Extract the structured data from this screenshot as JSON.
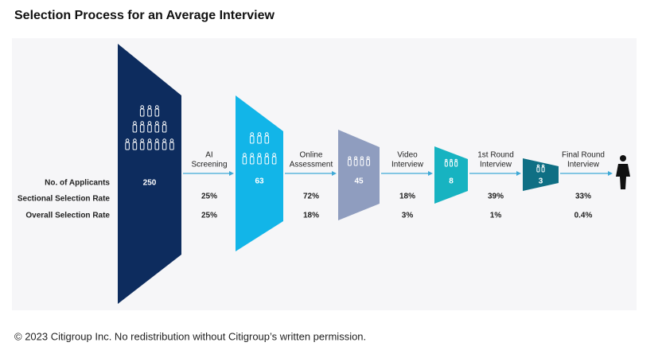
{
  "title": "Selection Process for an Average Interview",
  "row_labels": [
    "No. of Applicants",
    "Sectional Selection Rate",
    "Overall Selection Rate"
  ],
  "stages": [
    {
      "applicants": 250
    },
    {
      "applicants": 63
    },
    {
      "applicants": 45
    },
    {
      "applicants": 8
    },
    {
      "applicants": 3
    }
  ],
  "steps": [
    {
      "label": [
        "AI",
        "Screening"
      ],
      "sectional": "25%",
      "overall": "25%"
    },
    {
      "label": [
        "Online",
        "Assessment"
      ],
      "sectional": "72%",
      "overall": "18%"
    },
    {
      "label": [
        "Video",
        "Interview"
      ],
      "sectional": "18%",
      "overall": "3%"
    },
    {
      "label": [
        "1st Round",
        "Interview"
      ],
      "sectional": "39%",
      "overall": "1%"
    },
    {
      "label": [
        "Final Round",
        "Interview"
      ],
      "sectional": "33%",
      "overall": "0.4%"
    }
  ],
  "footer": "© 2023 Citigroup Inc. No redistribution without Citigroup’s written permission."
}
